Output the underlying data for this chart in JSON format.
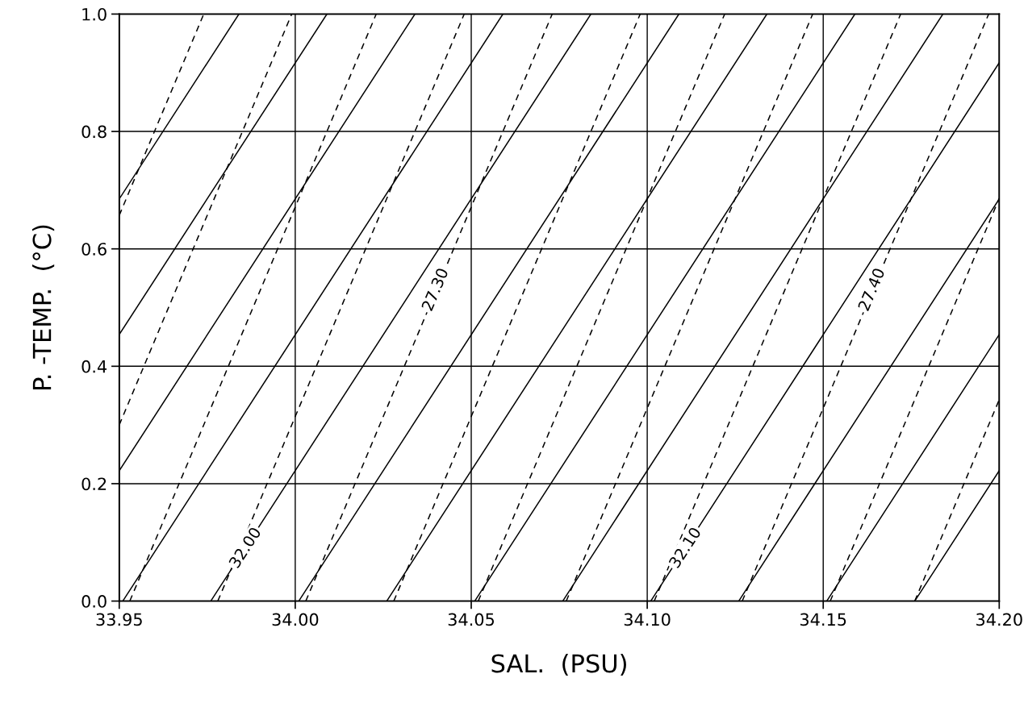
{
  "chart_data": {
    "type": "line",
    "xlabel": "SAL.  (PSU)",
    "ylabel": "P. -TEMP.  (°C)",
    "xlim": [
      33.95,
      34.2
    ],
    "ylim": [
      0,
      1
    ],
    "xticks": [
      {
        "value": 33.95,
        "label": "33.95"
      },
      {
        "value": 34.0,
        "label": "34.00"
      },
      {
        "value": 34.05,
        "label": "34.05"
      },
      {
        "value": 34.1,
        "label": "34.10"
      },
      {
        "value": 34.15,
        "label": "34.15"
      },
      {
        "value": 34.2,
        "label": "34.20"
      }
    ],
    "yticks": [
      {
        "value": 0,
        "label": "0.0"
      },
      0.2,
      0.4,
      0.6,
      0.8,
      {
        "value": 1,
        "label": "1.0"
      }
    ],
    "grid": true,
    "marker": "none",
    "series": [
      {
        "color": "#000000",
        "line_style": "solid",
        "x": [
          33.95,
          33.984
        ],
        "values": [
          0.685,
          1
        ]
      },
      {
        "color": "#000000",
        "line_style": "solid",
        "x": [
          33.95,
          34.009
        ],
        "values": [
          0.454,
          1
        ]
      },
      {
        "color": "#000000",
        "line_style": "solid",
        "x": [
          33.95,
          34.034
        ],
        "values": [
          0.222,
          1
        ]
      },
      {
        "color": "#000000",
        "line_style": "solid",
        "x": [
          33.951,
          34.059
        ],
        "values": [
          0,
          1
        ]
      },
      {
        "color": "#000000",
        "line_style": "solid",
        "x": [
          33.976,
          34.084
        ],
        "values": [
          0,
          1
        ]
      },
      {
        "color": "#000000",
        "line_style": "solid",
        "x": [
          34.001,
          34.109
        ],
        "values": [
          0,
          1
        ]
      },
      {
        "color": "#000000",
        "line_style": "solid",
        "x": [
          34.026,
          34.134
        ],
        "values": [
          0,
          1
        ]
      },
      {
        "color": "#000000",
        "line_style": "solid",
        "x": [
          34.051,
          34.159
        ],
        "values": [
          0,
          1
        ]
      },
      {
        "color": "#000000",
        "line_style": "solid",
        "x": [
          34.076,
          34.184
        ],
        "values": [
          0,
          1
        ]
      },
      {
        "color": "#000000",
        "line_style": "solid",
        "x": [
          34.101,
          34.2
        ],
        "values": [
          0,
          0.917
        ]
      },
      {
        "color": "#000000",
        "line_style": "solid",
        "x": [
          34.126,
          34.2
        ],
        "values": [
          0,
          0.685
        ]
      },
      {
        "color": "#000000",
        "line_style": "solid",
        "x": [
          34.151,
          34.2
        ],
        "values": [
          0,
          0.454
        ]
      },
      {
        "color": "#000000",
        "line_style": "solid",
        "x": [
          34.176,
          34.2
        ],
        "values": [
          0,
          0.222
        ]
      },
      {
        "color": "#000000",
        "line_style": "dashed",
        "x": [
          33.95,
          33.974
        ],
        "values": [
          0.657,
          1
        ]
      },
      {
        "color": "#000000",
        "line_style": "dashed",
        "x": [
          33.95,
          33.999
        ],
        "values": [
          0.3,
          1
        ]
      },
      {
        "color": "#000000",
        "line_style": "dashed",
        "x": [
          33.953,
          34.023
        ],
        "values": [
          0,
          1
        ]
      },
      {
        "color": "#000000",
        "line_style": "dashed",
        "x": [
          33.978,
          34.048
        ],
        "values": [
          0,
          1
        ]
      },
      {
        "color": "#000000",
        "line_style": "dashed",
        "x": [
          34.003,
          34.073
        ],
        "values": [
          0,
          1
        ]
      },
      {
        "color": "#000000",
        "line_style": "dashed",
        "x": [
          34.028,
          34.098
        ],
        "values": [
          0,
          1
        ]
      },
      {
        "color": "#000000",
        "line_style": "dashed",
        "x": [
          34.052,
          34.122
        ],
        "values": [
          0,
          1
        ]
      },
      {
        "color": "#000000",
        "line_style": "dashed",
        "x": [
          34.077,
          34.147
        ],
        "values": [
          0,
          1
        ]
      },
      {
        "color": "#000000",
        "line_style": "dashed",
        "x": [
          34.102,
          34.172
        ],
        "values": [
          0,
          1
        ]
      },
      {
        "color": "#000000",
        "line_style": "dashed",
        "x": [
          34.127,
          34.197
        ],
        "values": [
          0,
          1
        ]
      },
      {
        "color": "#000000",
        "line_style": "dashed",
        "x": [
          34.152,
          34.2
        ],
        "values": [
          0,
          0.686
        ]
      },
      {
        "color": "#000000",
        "line_style": "dashed",
        "x": [
          34.176,
          34.2
        ],
        "values": [
          0,
          0.343
        ]
      }
    ],
    "annotations": [
      {
        "text": "32.00",
        "x": 33.986,
        "y": 0.09
      },
      {
        "text": "32.10",
        "x": 34.111,
        "y": 0.09
      },
      {
        "text": "27.30",
        "x": 34.04,
        "y": 0.53
      },
      {
        "text": "27.40",
        "x": 34.164,
        "y": 0.53
      }
    ]
  }
}
